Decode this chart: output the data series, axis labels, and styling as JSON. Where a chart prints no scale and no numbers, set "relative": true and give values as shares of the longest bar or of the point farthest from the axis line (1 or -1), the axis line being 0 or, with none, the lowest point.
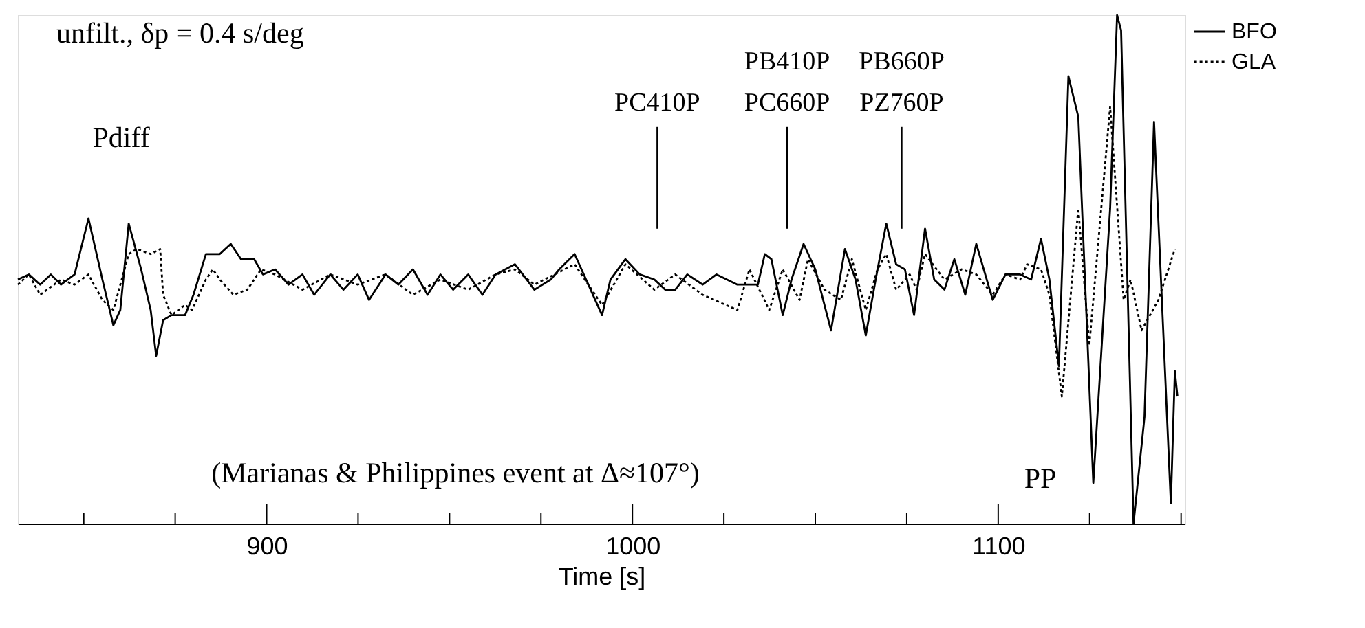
{
  "chart_data": {
    "type": "line",
    "title": "unfilt., δp = 0.4 s/deg",
    "xlabel": "Time [s]",
    "relative": true,
    "legend": "top right",
    "xlim": [
      832,
      1151
    ],
    "xticks": [
      {
        "value": 850,
        "label": null
      },
      {
        "value": 875,
        "label": null
      },
      900,
      {
        "value": 925,
        "label": null
      },
      {
        "value": 950,
        "label": null
      },
      {
        "value": 975,
        "label": null
      },
      1000,
      {
        "value": 1025,
        "label": null
      },
      {
        "value": 1050,
        "label": null
      },
      {
        "value": 1075,
        "label": null
      },
      1100,
      {
        "value": 1125,
        "label": null
      },
      {
        "value": 1150,
        "label": null
      }
    ],
    "series": [
      {
        "name": "BFO",
        "color": "#000000",
        "line_style": "solid",
        "x": [
          832,
          835,
          838.1,
          841,
          843.8,
          847.5,
          851.3,
          855.1,
          858.1,
          860,
          862.3,
          865.7,
          868.3,
          869.8,
          871.7,
          874.0,
          877.7,
          880,
          883.4,
          887.2,
          890.2,
          893,
          896.6,
          899,
          902.3,
          906,
          909.8,
          913,
          917.4,
          921,
          924.9,
          928,
          932.5,
          936,
          940,
          944,
          947.5,
          951,
          955.1,
          959,
          962.6,
          967.9,
          973.2,
          977.7,
          980,
          984.2,
          991.7,
          994,
          998.1,
          1002,
          1006.0,
          1009,
          1011.7,
          1015,
          1019.2,
          1023,
          1028.7,
          1034.3,
          1036.2,
          1038,
          1041.1,
          1043.5,
          1046.8,
          1050,
          1054.3,
          1058.1,
          1061,
          1063.8,
          1066.5,
          1069.4,
          1072.1,
          1074.5,
          1077.0,
          1080.0,
          1082.5,
          1085.3,
          1088,
          1091,
          1094.0,
          1098.5,
          1102,
          1106.0,
          1109,
          1111.7,
          1114,
          1116.6,
          1119.2,
          1121.9,
          1126.0,
          1130.6,
          1132.5,
          1133.6,
          1137.0,
          1140.0,
          1142.6,
          1147.2,
          1148.3,
          1149
        ],
        "values": [
          0.48,
          0.49,
          0.47,
          0.49,
          0.47,
          0.49,
          0.6,
          0.48,
          0.39,
          0.42,
          0.59,
          0.5,
          0.42,
          0.33,
          0.4,
          0.41,
          0.41,
          0.45,
          0.53,
          0.53,
          0.55,
          0.52,
          0.52,
          0.49,
          0.5,
          0.47,
          0.49,
          0.45,
          0.49,
          0.46,
          0.49,
          0.44,
          0.49,
          0.47,
          0.5,
          0.45,
          0.49,
          0.46,
          0.49,
          0.45,
          0.49,
          0.51,
          0.46,
          0.48,
          0.5,
          0.53,
          0.41,
          0.48,
          0.52,
          0.49,
          0.48,
          0.46,
          0.46,
          0.49,
          0.47,
          0.49,
          0.47,
          0.47,
          0.53,
          0.52,
          0.41,
          0.48,
          0.55,
          0.5,
          0.38,
          0.54,
          0.48,
          0.37,
          0.48,
          0.59,
          0.51,
          0.5,
          0.41,
          0.58,
          0.48,
          0.46,
          0.52,
          0.45,
          0.55,
          0.44,
          0.49,
          0.49,
          0.48,
          0.56,
          0.48,
          0.31,
          0.88,
          0.8,
          0.08,
          0.62,
          1.0,
          0.97,
          0.0,
          0.21,
          0.79,
          0.04,
          0.3,
          0.25
        ]
      },
      {
        "name": "GLA",
        "color": "#000000",
        "line_style": "dotted",
        "x": [
          832,
          835,
          838.1,
          843.8,
          847.5,
          851.3,
          855.1,
          858.1,
          862.3,
          864.5,
          868.3,
          870.9,
          871.7,
          874.0,
          877.7,
          879.6,
          883.4,
          885.3,
          887.2,
          890.9,
          894.7,
          898.5,
          902.3,
          909.8,
          917.4,
          924.9,
          932.5,
          940,
          947.5,
          955.1,
          962.6,
          967.9,
          973.2,
          984.2,
          991.7,
          998.1,
          1006.0,
          1011.7,
          1019.2,
          1028.7,
          1032,
          1037.4,
          1041.1,
          1045.7,
          1048,
          1052.5,
          1057.0,
          1060,
          1063.8,
          1067,
          1069.4,
          1072.1,
          1075.8,
          1077.7,
          1080,
          1085.3,
          1090,
          1094,
          1098.5,
          1102,
          1106.0,
          1107.9,
          1111.7,
          1114,
          1117.4,
          1121.9,
          1124.9,
          1130.6,
          1134.3,
          1136.2,
          1139.2,
          1143.8,
          1148.3
        ],
        "values": [
          0.47,
          0.49,
          0.45,
          0.48,
          0.47,
          0.49,
          0.44,
          0.42,
          0.53,
          0.54,
          0.53,
          0.54,
          0.45,
          0.41,
          0.43,
          0.42,
          0.48,
          0.5,
          0.48,
          0.45,
          0.46,
          0.5,
          0.49,
          0.46,
          0.49,
          0.47,
          0.49,
          0.45,
          0.48,
          0.46,
          0.49,
          0.5,
          0.47,
          0.51,
          0.43,
          0.51,
          0.46,
          0.49,
          0.45,
          0.42,
          0.5,
          0.42,
          0.5,
          0.44,
          0.52,
          0.46,
          0.44,
          0.52,
          0.42,
          0.5,
          0.53,
          0.46,
          0.49,
          0.46,
          0.53,
          0.48,
          0.5,
          0.49,
          0.45,
          0.49,
          0.48,
          0.51,
          0.5,
          0.45,
          0.25,
          0.62,
          0.35,
          0.82,
          0.44,
          0.48,
          0.38,
          0.44,
          0.54
        ]
      }
    ],
    "ref_lines": [
      {
        "axis": "x",
        "value": 1006.8,
        "label": "PC410P"
      },
      {
        "axis": "x",
        "value": 1042.3,
        "label": "PB410P\nPC660P"
      },
      {
        "axis": "x",
        "value": 1073.6,
        "label": "PB660P\nPZ760P"
      }
    ],
    "annotations": [
      "Pdiff",
      "PP",
      "(Marianas & Philippines event at Δ≈107°)"
    ]
  }
}
